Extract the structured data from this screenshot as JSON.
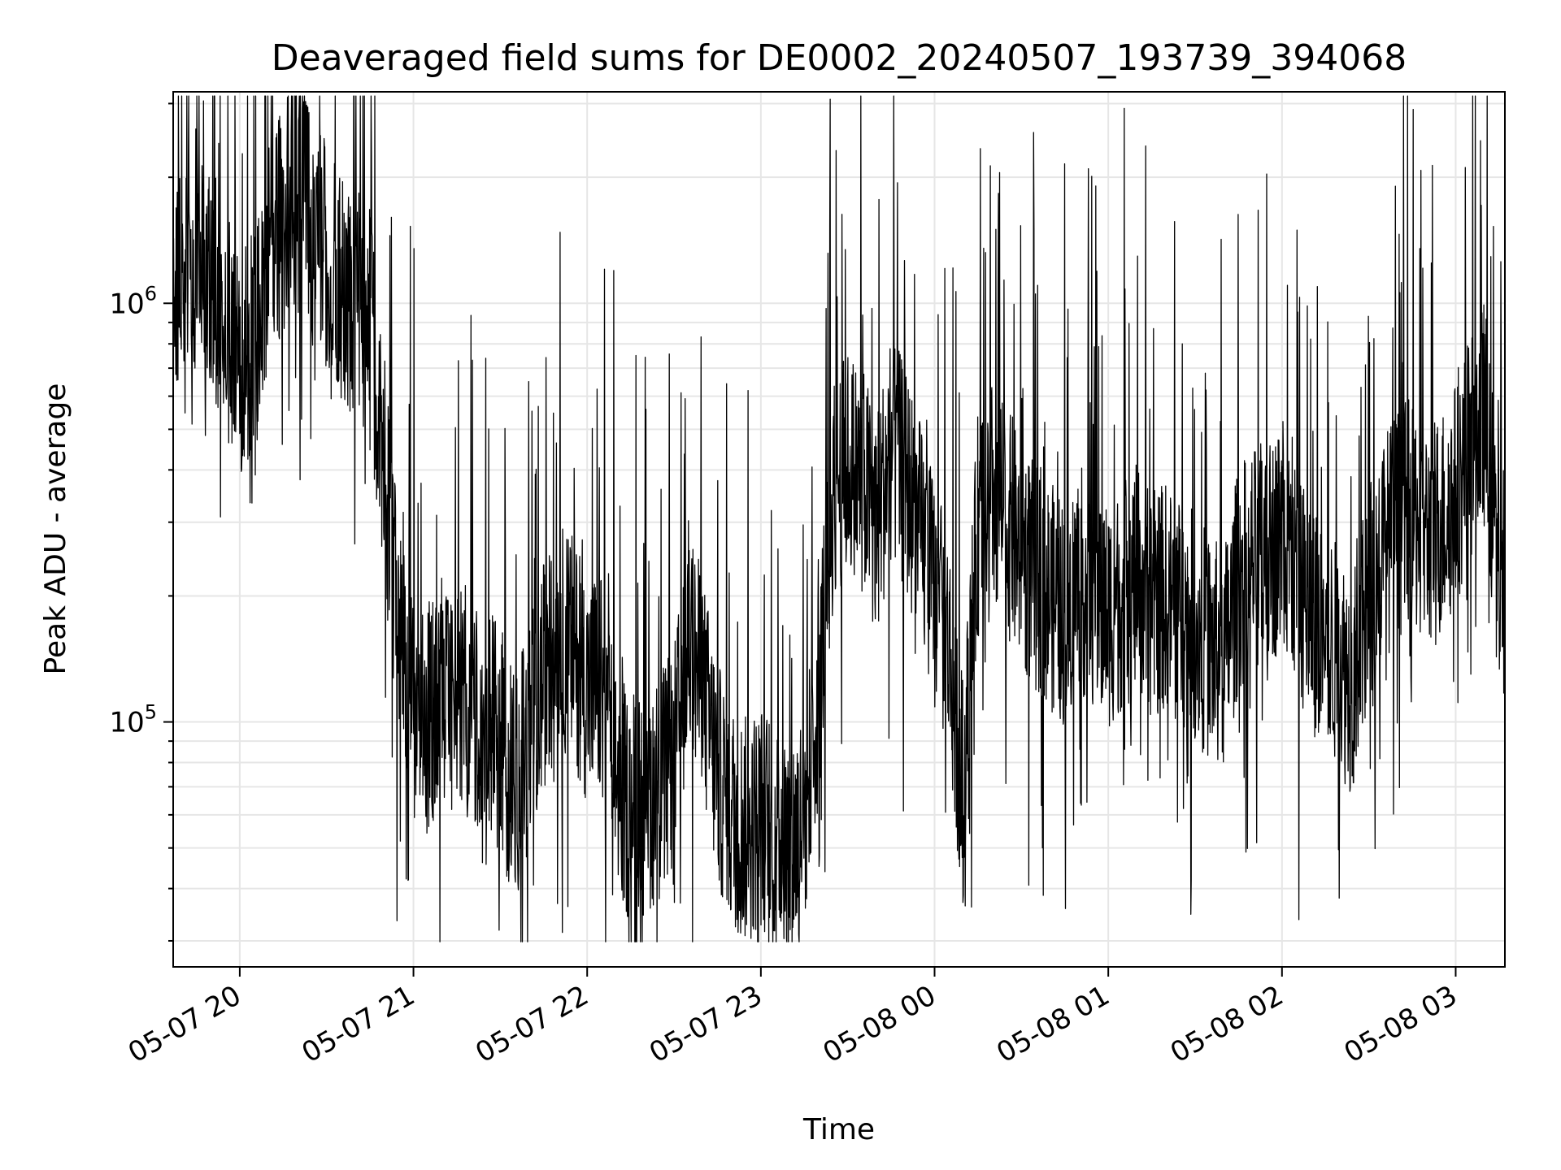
{
  "chart_data": {
    "type": "line",
    "title": "Deaveraged field sums for DE0002_20240507_193739_394068",
    "xlabel": "Time",
    "ylabel": "Peak ADU - average",
    "y_scale": "log",
    "ylim": [
      26000,
      3200000
    ],
    "xlim": [
      "2024-05-07 19:37",
      "2024-05-08 03:17"
    ],
    "grid": true,
    "line_color": "#000000",
    "grid_color": "#e6e6e6",
    "x_ticks": [
      {
        "t": "2024-05-07 20:00",
        "label": "05-07 20"
      },
      {
        "t": "2024-05-07 21:00",
        "label": "05-07 21"
      },
      {
        "t": "2024-05-07 22:00",
        "label": "05-07 22"
      },
      {
        "t": "2024-05-07 23:00",
        "label": "05-07 23"
      },
      {
        "t": "2024-05-08 00:00",
        "label": "05-08 00"
      },
      {
        "t": "2024-05-08 01:00",
        "label": "05-08 01"
      },
      {
        "t": "2024-05-08 02:00",
        "label": "05-08 02"
      },
      {
        "t": "2024-05-08 03:00",
        "label": "05-08 03"
      }
    ],
    "y_ticks": [
      {
        "value": 100000,
        "base": "10",
        "exp": "5"
      },
      {
        "value": 1000000,
        "base": "10",
        "exp": "6"
      }
    ],
    "series": [
      {
        "x": [
          "2024-05-07 19:37",
          "2024-05-07 19:45",
          "2024-05-07 19:50",
          "2024-05-07 19:55",
          "2024-05-07 20:00",
          "2024-05-07 20:05",
          "2024-05-07 20:10",
          "2024-05-07 20:15",
          "2024-05-07 20:20",
          "2024-05-07 20:25",
          "2024-05-07 20:30",
          "2024-05-07 20:35",
          "2024-05-07 20:40",
          "2024-05-07 20:45",
          "2024-05-07 20:50",
          "2024-05-07 20:55",
          "2024-05-07 21:00",
          "2024-05-07 21:05",
          "2024-05-07 21:10",
          "2024-05-07 21:15",
          "2024-05-07 21:20",
          "2024-05-07 21:25",
          "2024-05-07 21:30",
          "2024-05-07 21:35",
          "2024-05-07 21:40",
          "2024-05-07 21:45",
          "2024-05-07 21:50",
          "2024-05-07 21:55",
          "2024-05-07 22:00",
          "2024-05-07 22:05",
          "2024-05-07 22:10",
          "2024-05-07 22:15",
          "2024-05-07 22:20",
          "2024-05-07 22:25",
          "2024-05-07 22:30",
          "2024-05-07 22:35",
          "2024-05-07 22:40",
          "2024-05-07 22:45",
          "2024-05-07 22:50",
          "2024-05-07 22:55",
          "2024-05-07 23:00",
          "2024-05-07 23:05",
          "2024-05-07 23:10",
          "2024-05-07 23:15",
          "2024-05-07 23:20",
          "2024-05-07 23:25",
          "2024-05-07 23:30",
          "2024-05-07 23:35",
          "2024-05-07 23:40",
          "2024-05-07 23:45",
          "2024-05-07 23:50",
          "2024-05-07 23:55",
          "2024-05-08 00:00",
          "2024-05-08 00:05",
          "2024-05-08 00:10",
          "2024-05-08 00:15",
          "2024-05-08 00:20",
          "2024-05-08 00:25",
          "2024-05-08 00:30",
          "2024-05-08 00:35",
          "2024-05-08 00:40",
          "2024-05-08 00:45",
          "2024-05-08 00:50",
          "2024-05-08 00:55",
          "2024-05-08 01:00",
          "2024-05-08 01:05",
          "2024-05-08 01:10",
          "2024-05-08 01:15",
          "2024-05-08 01:20",
          "2024-05-08 01:25",
          "2024-05-08 01:30",
          "2024-05-08 01:35",
          "2024-05-08 01:40",
          "2024-05-08 01:45",
          "2024-05-08 01:50",
          "2024-05-08 01:55",
          "2024-05-08 02:00",
          "2024-05-08 02:05",
          "2024-05-08 02:10",
          "2024-05-08 02:15",
          "2024-05-08 02:20",
          "2024-05-08 02:25",
          "2024-05-08 02:30",
          "2024-05-08 02:35",
          "2024-05-08 02:40",
          "2024-05-08 02:45",
          "2024-05-08 02:50",
          "2024-05-08 02:55",
          "2024-05-08 03:00",
          "2024-05-08 03:05",
          "2024-05-08 03:10",
          "2024-05-08 03:15"
        ],
        "y": [
          1200000,
          1250000,
          1150000,
          900000,
          700000,
          800000,
          1300000,
          1600000,
          1800000,
          1500000,
          1300000,
          1100000,
          1000000,
          900000,
          400000,
          150000,
          110000,
          100000,
          110000,
          120000,
          110000,
          100000,
          90000,
          70000,
          90000,
          130000,
          160000,
          150000,
          120000,
          120000,
          75000,
          60000,
          65000,
          70000,
          80000,
          160000,
          120000,
          75000,
          60000,
          55000,
          60000,
          55000,
          50000,
          60000,
          120000,
          350000,
          420000,
          380000,
          300000,
          450000,
          380000,
          280000,
          200000,
          150000,
          65000,
          300000,
          350000,
          300000,
          250000,
          220000,
          200000,
          180000,
          220000,
          200000,
          180000,
          200000,
          220000,
          190000,
          200000,
          180000,
          170000,
          150000,
          140000,
          220000,
          240000,
          250000,
          280000,
          220000,
          180000,
          160000,
          140000,
          120000,
          200000,
          260000,
          300000,
          320000,
          280000,
          300000,
          350000,
          450000,
          550000,
          220000
        ]
      }
    ]
  }
}
